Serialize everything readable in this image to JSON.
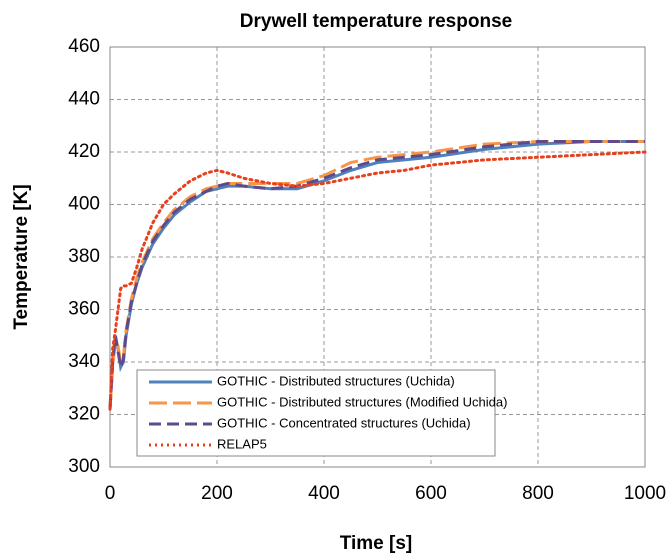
{
  "chart_data": {
    "type": "line",
    "title": "Drywell temperature response",
    "x_label": "Time [s]",
    "y_label": "Temperature  [K]",
    "x": [
      0,
      5,
      10,
      15,
      20,
      25,
      30,
      40,
      50,
      60,
      80,
      100,
      120,
      150,
      180,
      200,
      220,
      250,
      300,
      350,
      400,
      450,
      500,
      550,
      600,
      700,
      800,
      900,
      1000
    ],
    "series": [
      {
        "name": "GOTHIC - Distributed  structures (Uchida)",
        "color": "#4f81bd",
        "dash": "solid",
        "values": [
          322,
          340,
          350,
          345,
          338,
          340,
          350,
          362,
          370,
          376,
          385,
          391,
          396,
          401,
          405,
          406,
          407,
          407,
          406,
          406,
          409,
          413,
          416,
          417,
          418,
          421,
          423,
          424,
          424
        ]
      },
      {
        "name": "GOTHIC - Distributed  structures (Modified Uchida)",
        "color": "#f79646",
        "dash": "long",
        "values": [
          322,
          338,
          348,
          346,
          340,
          342,
          352,
          364,
          372,
          378,
          387,
          393,
          398,
          403,
          406,
          407,
          408,
          408,
          408,
          408,
          411,
          416,
          418,
          419,
          420,
          423,
          424,
          424,
          424
        ]
      },
      {
        "name": "GOTHIC - Concentrated structures (Uchida)",
        "color": "#5f4b8b",
        "dash": "medium",
        "values": [
          322,
          340,
          350,
          344,
          338,
          341,
          351,
          363,
          370,
          377,
          386,
          392,
          397,
          402,
          405,
          407,
          408,
          407,
          406,
          407,
          410,
          414,
          417,
          418,
          419,
          422,
          424,
          424,
          424
        ]
      },
      {
        "name": "RELAP5",
        "color": "#e8401c",
        "dash": "dot",
        "values": [
          322,
          345,
          352,
          360,
          368,
          369,
          369,
          370,
          376,
          383,
          393,
          400,
          404,
          409,
          412,
          413,
          412,
          410,
          408,
          407,
          408,
          410,
          412,
          413,
          415,
          417,
          418,
          419,
          420
        ]
      }
    ],
    "xlim": [
      0,
      1000
    ],
    "xticks": [
      0,
      200,
      400,
      600,
      800,
      1000
    ],
    "ylim": [
      300,
      460
    ],
    "yticks": [
      300,
      320,
      340,
      360,
      380,
      400,
      420,
      440,
      460
    ],
    "grid": true
  }
}
